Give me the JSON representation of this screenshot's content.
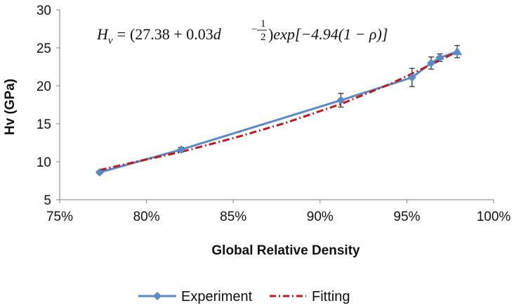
{
  "chart_data": {
    "type": "line",
    "xlabel": "Global Relative Density",
    "ylabel": "Hv (GPa)",
    "xlim": [
      75,
      100
    ],
    "ylim": [
      5,
      30
    ],
    "x_ticks": [
      "75%",
      "80%",
      "85%",
      "90%",
      "95%",
      "100%"
    ],
    "x_tick_values": [
      75,
      80,
      85,
      90,
      95,
      100
    ],
    "y_ticks": [
      "5",
      "10",
      "15",
      "20",
      "25",
      "30"
    ],
    "y_tick_values": [
      5,
      10,
      15,
      20,
      25,
      30
    ],
    "grid": false,
    "legend_position": "bottom",
    "equation": {
      "lhs": "H",
      "lhs_sub": "v",
      "eq_sign": "=",
      "part1": "(27.38 + 0.03",
      "d": "d",
      "exp_minus": "−",
      "exp_num": "1",
      "exp_den": "2",
      "part2": ")",
      "part3": "exp[−4.94(1 − ρ)]"
    },
    "series": [
      {
        "name": "Experiment",
        "color": "#5B8AC6",
        "marker": "diamond",
        "x": [
          77.3,
          82.0,
          91.2,
          95.3,
          96.4,
          96.9,
          97.9
        ],
        "y": [
          8.6,
          11.6,
          18.1,
          21.1,
          23.0,
          23.7,
          24.5
        ],
        "error": [
          0.2,
          0.3,
          0.9,
          1.2,
          0.8,
          0.5,
          0.8
        ]
      },
      {
        "name": "Fitting",
        "color": "#C0181E",
        "style": "dash-dot",
        "x": [
          77.3,
          80.0,
          82.0,
          85.0,
          88.0,
          91.2,
          94.0,
          95.3,
          96.4,
          97.9
        ],
        "y": [
          8.9,
          10.3,
          11.3,
          13.1,
          15.1,
          17.6,
          20.2,
          21.6,
          22.8,
          24.5
        ]
      }
    ]
  }
}
